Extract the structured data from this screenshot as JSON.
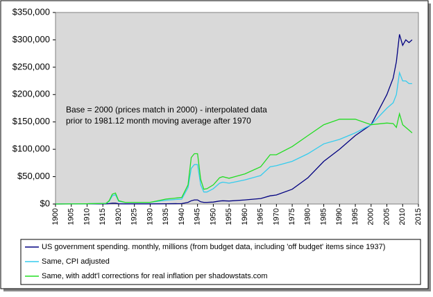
{
  "chart_data": {
    "type": "line",
    "annotations": [
      "Base = 2000 (prices match in 2000) - interpolated data",
      "prior to 1981.12 month moving average after 1970"
    ],
    "x": [
      1900,
      1910,
      1916,
      1917,
      1918,
      1919,
      1920,
      1922,
      1930,
      1935,
      1940,
      1942,
      1943,
      1944,
      1945,
      1946,
      1947,
      1948,
      1950,
      1952,
      1953,
      1955,
      1960,
      1965,
      1968,
      1970,
      1975,
      1980,
      1985,
      1990,
      1995,
      2000,
      2005,
      2007,
      2008,
      2009,
      2010,
      2011,
      2012,
      2013
    ],
    "series": [
      {
        "name": "US government spending. monthly, millions (from budget data, including 'off budget' items since 1937)",
        "color": "#000080",
        "values": [
          0,
          100,
          200,
          800,
          1500,
          1500,
          400,
          300,
          300,
          500,
          800,
          3000,
          6000,
          7500,
          7500,
          4000,
          3000,
          3000,
          3500,
          5500,
          6000,
          5500,
          7500,
          10000,
          15000,
          16500,
          27000,
          48000,
          78000,
          100000,
          125000,
          145000,
          200000,
          230000,
          260000,
          310000,
          290000,
          300000,
          295000,
          300000
        ]
      },
      {
        "name": "Same, CPI adjusted",
        "color": "#33ccee",
        "values": [
          0,
          500,
          1000,
          5000,
          15000,
          17000,
          5000,
          3000,
          3000,
          7000,
          9000,
          30000,
          65000,
          72000,
          72000,
          35000,
          22000,
          22000,
          28000,
          38000,
          40000,
          38000,
          44000,
          52000,
          68000,
          70000,
          78000,
          92000,
          110000,
          118000,
          130000,
          145000,
          175000,
          185000,
          200000,
          240000,
          225000,
          225000,
          220000,
          220000
        ]
      },
      {
        "name": "Same, with addt'l corrections for real inflation per shadowstats.com",
        "color": "#22dd22",
        "values": [
          0,
          500,
          1200,
          6000,
          18000,
          20000,
          6000,
          3000,
          3000,
          9000,
          12000,
          35000,
          85000,
          92000,
          92000,
          45000,
          27000,
          28000,
          35000,
          48000,
          50000,
          47000,
          55000,
          68000,
          90000,
          90000,
          105000,
          125000,
          145000,
          155000,
          155000,
          145000,
          148000,
          147000,
          140000,
          165000,
          145000,
          140000,
          135000,
          130000
        ]
      }
    ],
    "xlim": [
      1900,
      2015
    ],
    "xticks": [
      1900,
      1905,
      1910,
      1915,
      1920,
      1925,
      1930,
      1935,
      1940,
      1945,
      1950,
      1955,
      1960,
      1965,
      1970,
      1975,
      1980,
      1985,
      1990,
      1995,
      2000,
      2005,
      2010,
      2015
    ],
    "ylim": [
      0,
      350000
    ],
    "yticks": [
      {
        "value": 0,
        "label": "$0"
      },
      {
        "value": 50000,
        "label": "$50,000"
      },
      {
        "value": 100000,
        "label": "$100,000"
      },
      {
        "value": 150000,
        "label": "$150,000"
      },
      {
        "value": 200000,
        "label": "$200,000"
      },
      {
        "value": 250000,
        "label": "$250,000"
      },
      {
        "value": 300000,
        "label": "$300,000"
      },
      {
        "value": 350000,
        "label": "$350,000"
      }
    ],
    "grid": false
  }
}
